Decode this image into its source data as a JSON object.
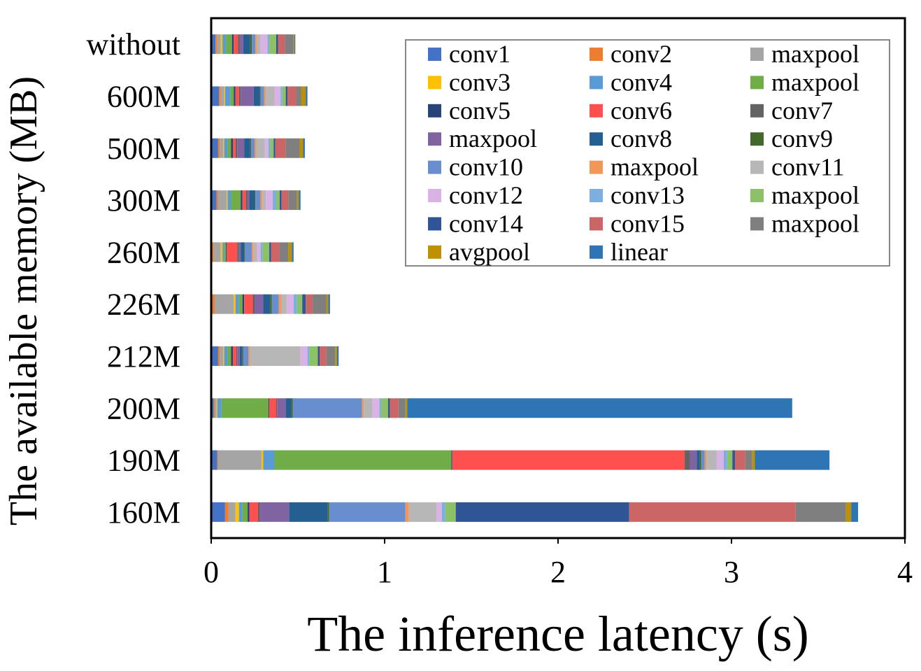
{
  "chart_data": {
    "type": "bar",
    "orientation": "horizontal",
    "stacked": true,
    "title": "",
    "xlabel": "The inference latency (s)",
    "ylabel": "The available memory (MB)",
    "xlim": [
      0,
      4
    ],
    "xticks": [
      "0",
      "1",
      "2",
      "3",
      "4"
    ],
    "grid": false,
    "legend_position": "top-right",
    "categories": [
      "without",
      "600M",
      "500M",
      "300M",
      "260M",
      "226M",
      "212M",
      "200M",
      "190M",
      "160M"
    ],
    "series": [
      {
        "name": "conv1",
        "color": "#4472C4",
        "values": [
          0.025,
          0.045,
          0.04,
          0.03,
          0.005,
          0.005,
          0.04,
          0.015,
          0.035,
          0.08
        ]
      },
      {
        "name": "conv2",
        "color": "#ED7D31",
        "values": [
          0.01,
          0.01,
          0.01,
          0.01,
          0.01,
          0.015,
          0.01,
          0.005,
          0.005,
          0.02
        ]
      },
      {
        "name": "maxpool",
        "color": "#A5A5A5",
        "values": [
          0.02,
          0.02,
          0.02,
          0.05,
          0.04,
          0.11,
          0.02,
          0.01,
          0.25,
          0.04
        ]
      },
      {
        "name": "conv3",
        "color": "#FFC000",
        "values": [
          0.01,
          0.005,
          0.005,
          0.005,
          0.01,
          0.01,
          0.005,
          0.005,
          0.01,
          0.02
        ]
      },
      {
        "name": "conv4",
        "color": "#5B9BD5",
        "values": [
          0.02,
          0.03,
          0.02,
          0.02,
          0.01,
          0.02,
          0.02,
          0.025,
          0.065,
          0.02
        ]
      },
      {
        "name": "maxpool",
        "color": "#70AD47",
        "values": [
          0.035,
          0.02,
          0.02,
          0.055,
          0.01,
          0.02,
          0.02,
          0.27,
          1.02,
          0.03
        ]
      },
      {
        "name": "conv5",
        "color": "#264478",
        "values": [
          0.01,
          0.01,
          0.01,
          0.01,
          0.005,
          0.01,
          0.01,
          0.005,
          0.005,
          0.01
        ]
      },
      {
        "name": "conv6",
        "color": "#FF5050",
        "values": [
          0.025,
          0.02,
          0.015,
          0.02,
          0.06,
          0.05,
          0.02,
          0.04,
          1.34,
          0.05
        ]
      },
      {
        "name": "conv7",
        "color": "#636363",
        "values": [
          0.01,
          0.01,
          0.01,
          0.01,
          0.01,
          0.01,
          0.005,
          0.005,
          0.03,
          0.01
        ]
      },
      {
        "name": "maxpool",
        "color": "#8064A2",
        "values": [
          0.02,
          0.075,
          0.04,
          0.01,
          0.01,
          0.05,
          0.015,
          0.05,
          0.04,
          0.17
        ]
      },
      {
        "name": "conv8",
        "color": "#255E91",
        "values": [
          0.04,
          0.035,
          0.035,
          0.03,
          0.02,
          0.04,
          0.015,
          0.03,
          0.015,
          0.22
        ]
      },
      {
        "name": "conv9",
        "color": "#43682B",
        "values": [
          0.01,
          0.005,
          0.005,
          0.005,
          0.005,
          0.01,
          0.005,
          0.01,
          0.01,
          0.01
        ]
      },
      {
        "name": "conv10",
        "color": "#698ED0",
        "values": [
          0.02,
          0.02,
          0.02,
          0.03,
          0.04,
          0.04,
          0.03,
          0.4,
          0.02,
          0.44
        ]
      },
      {
        "name": "maxpool",
        "color": "#F1975A",
        "values": [
          0.01,
          0.01,
          0.01,
          0.01,
          0.01,
          0.015,
          0.01,
          0.01,
          0.01,
          0.02
        ]
      },
      {
        "name": "conv11",
        "color": "#B7B7B7",
        "values": [
          0.02,
          0.05,
          0.05,
          0.02,
          0.02,
          0.03,
          0.29,
          0.05,
          0.06,
          0.16
        ]
      },
      {
        "name": "conv12",
        "color": "#D9B3E6",
        "values": [
          0.04,
          0.035,
          0.02,
          0.04,
          0.02,
          0.04,
          0.04,
          0.04,
          0.04,
          0.03
        ]
      },
      {
        "name": "conv13",
        "color": "#7CAFDD",
        "values": [
          0.01,
          0.01,
          0.01,
          0.02,
          0.01,
          0.02,
          0.01,
          0.01,
          0.02,
          0.02
        ]
      },
      {
        "name": "maxpool",
        "color": "#8CC168",
        "values": [
          0.04,
          0.02,
          0.02,
          0.02,
          0.04,
          0.03,
          0.05,
          0.04,
          0.03,
          0.06
        ]
      },
      {
        "name": "conv14",
        "color": "#2F5597",
        "values": [
          0.01,
          0.01,
          0.01,
          0.01,
          0.01,
          0.02,
          0.01,
          0.01,
          0.015,
          1.0
        ]
      },
      {
        "name": "conv15",
        "color": "#CC6666",
        "values": [
          0.04,
          0.05,
          0.06,
          0.04,
          0.05,
          0.04,
          0.04,
          0.05,
          0.06,
          0.96
        ]
      },
      {
        "name": "maxpool",
        "color": "#7F7F7F",
        "values": [
          0.05,
          0.03,
          0.08,
          0.05,
          0.05,
          0.08,
          0.05,
          0.04,
          0.04,
          0.29
        ]
      },
      {
        "name": "avgpool",
        "color": "#BF9000",
        "values": [
          0.005,
          0.025,
          0.02,
          0.01,
          0.02,
          0.01,
          0.01,
          0.01,
          0.015,
          0.03
        ]
      },
      {
        "name": "linear",
        "color": "#2E75B6",
        "values": [
          0.005,
          0.01,
          0.01,
          0.01,
          0.01,
          0.01,
          0.01,
          2.22,
          0.43,
          0.04
        ]
      }
    ]
  }
}
